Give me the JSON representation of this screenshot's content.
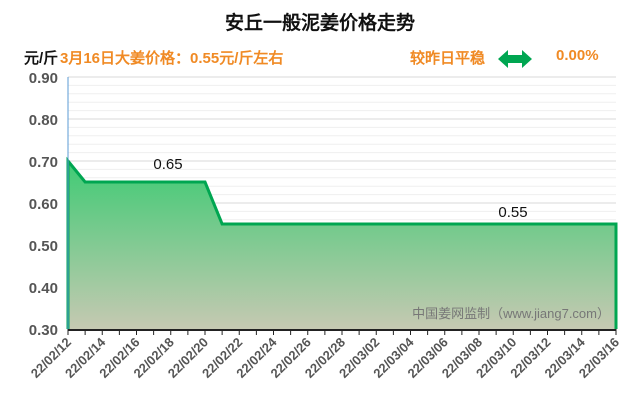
{
  "header": {
    "title": "安丘一般泥姜价格走势",
    "unit": "元/斤",
    "info": "3月16日大姜价格：0.55元/斤左右",
    "trend": "较昨日平稳",
    "change": "0.00%",
    "trend_icon": "double-arrow-icon"
  },
  "colors": {
    "accent": "#f08a24",
    "line": "#00a651",
    "arrow": "#00a651"
  },
  "chart_data": {
    "type": "area",
    "title": "安丘一般泥姜价格走势",
    "ylabel": "元/斤",
    "ylim": [
      0.3,
      0.9
    ],
    "yticks": [
      "0.30",
      "0.40",
      "0.50",
      "0.60",
      "0.70",
      "0.80",
      "0.90"
    ],
    "xticks": [
      "22/02/12",
      "22/02/14",
      "22/02/16",
      "22/02/18",
      "22/02/20",
      "22/02/22",
      "22/02/24",
      "22/02/26",
      "22/02/28",
      "22/03/02",
      "22/03/04",
      "22/03/06",
      "22/03/08",
      "22/03/10",
      "22/03/12",
      "22/03/14",
      "22/03/16"
    ],
    "x": [
      "22/02/12",
      "22/02/13",
      "22/02/20",
      "22/02/21",
      "22/03/16"
    ],
    "values": [
      0.7,
      0.65,
      0.65,
      0.55,
      0.55
    ],
    "annotations": [
      "0.65",
      "0.55"
    ],
    "watermark": "中国姜网监制（www.jiang7.com）",
    "grid": true
  }
}
